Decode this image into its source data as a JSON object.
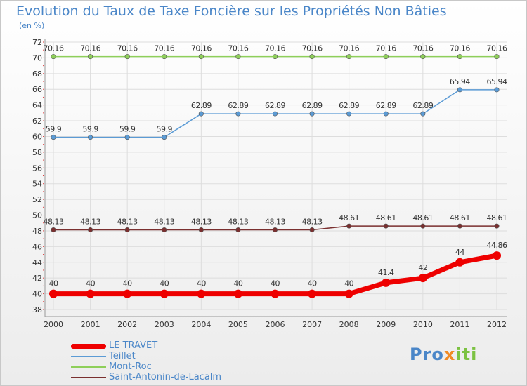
{
  "title": "Evolution du Taux de Taxe Foncière sur les Propriétés Non Bâties",
  "subtitle": "(en %)",
  "logo": "Proxiti",
  "colors": {
    "title": "#4a86c8",
    "grid": "#dddddd",
    "axis_ticks": "#e04040"
  },
  "chart_data": {
    "type": "line",
    "x": [
      "2000",
      "2001",
      "2002",
      "2003",
      "2004",
      "2005",
      "2006",
      "2007",
      "2008",
      "2009",
      "2010",
      "2011",
      "2012"
    ],
    "ylim": [
      38,
      72
    ],
    "yticks": [
      38,
      40,
      42,
      44,
      46,
      48,
      50,
      52,
      54,
      56,
      58,
      60,
      62,
      64,
      66,
      68,
      70,
      72
    ],
    "grid": true,
    "legend_position": "bottom-left",
    "series": [
      {
        "name": "Mont-Roc",
        "color": "#8ecf5a",
        "values": [
          70.16,
          70.16,
          70.16,
          70.16,
          70.16,
          70.16,
          70.16,
          70.16,
          70.16,
          70.16,
          70.16,
          70.16,
          70.16
        ],
        "labels": [
          "70.16",
          "70.16",
          "70.16",
          "70.16",
          "70.16",
          "70.16",
          "70.16",
          "70.16",
          "70.16",
          "70.16",
          "70.16",
          "70.16",
          "70.16"
        ]
      },
      {
        "name": "Teillet",
        "color": "#5b9bd5",
        "values": [
          59.9,
          59.9,
          59.9,
          59.9,
          62.89,
          62.89,
          62.89,
          62.89,
          62.89,
          62.89,
          62.89,
          65.94,
          65.94
        ],
        "labels": [
          "59.9",
          "59.9",
          "59.9",
          "59.9",
          "62.89",
          "62.89",
          "62.89",
          "62.89",
          "62.89",
          "62.89",
          "62.89",
          "65.94",
          "65.94"
        ]
      },
      {
        "name": "Saint-Antonin-de-Lacalm",
        "color": "#7a2f2f",
        "values": [
          48.13,
          48.13,
          48.13,
          48.13,
          48.13,
          48.13,
          48.13,
          48.13,
          48.61,
          48.61,
          48.61,
          48.61,
          48.61
        ],
        "labels": [
          "48.13",
          "48.13",
          "48.13",
          "48.13",
          "48.13",
          "48.13",
          "48.13",
          "48.13",
          "48.61",
          "48.61",
          "48.61",
          "48.61",
          "48.61"
        ]
      },
      {
        "name": "LE TRAVET",
        "color": "#ee0000",
        "values": [
          40,
          40,
          40,
          40,
          40,
          40,
          40,
          40,
          40,
          41.4,
          42,
          44,
          44.86
        ],
        "labels": [
          "40",
          "40",
          "40",
          "40",
          "40",
          "40",
          "40",
          "40",
          "40",
          "41.4",
          "42",
          "44",
          "44.86"
        ]
      }
    ],
    "legend_order": [
      "LE TRAVET",
      "Teillet",
      "Mont-Roc",
      "Saint-Antonin-de-Lacalm"
    ]
  }
}
